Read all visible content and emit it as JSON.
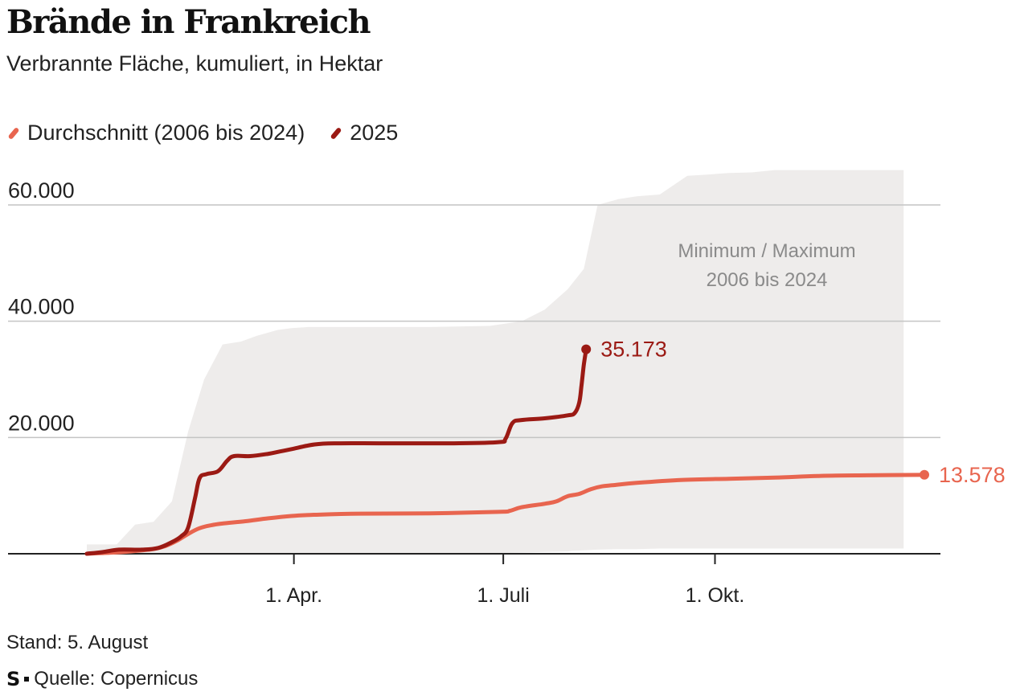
{
  "title": "Brände in Frankreich",
  "subtitle": "Verbrannte Fläche, kumuliert, in Hektar",
  "legend": {
    "average": "Durchschnitt (2006 bis 2024)",
    "current": "2025"
  },
  "colors": {
    "average": "#e8654f",
    "current": "#9b1a14",
    "range": "#eeeceb",
    "grid": "#c4c4c4",
    "axis": "#222222",
    "range_label": "#8a8a8a"
  },
  "footer": {
    "stand": "Stand: 5. August",
    "logo": "S",
    "source": "Quelle: Copernicus"
  },
  "chart_data": {
    "type": "area",
    "title": "Brände in Frankreich",
    "subtitle": "Verbrannte Fläche, kumuliert, in Hektar",
    "x_unit": "day of year",
    "xlim": [
      1,
      365
    ],
    "ylim": [
      0,
      60000
    ],
    "y_ticks": [
      20000,
      40000,
      60000
    ],
    "y_tick_labels": [
      "20.000",
      "40.000",
      "60.000"
    ],
    "x_ticks": [
      91,
      182,
      274
    ],
    "x_tick_labels": [
      "1. Apr.",
      "1. Juli",
      "1. Okt."
    ],
    "grid": true,
    "legend_position": "top-left",
    "range_label": [
      "Minimum / Maximum",
      "2006 bis 2024"
    ],
    "range": {
      "name": "Minimum / Maximum 2006 bis 2024",
      "x": [
        1,
        14,
        22,
        30,
        38,
        45,
        52,
        60,
        68,
        75,
        84,
        90,
        97,
        105,
        150,
        176,
        190,
        200,
        210,
        212,
        217,
        223,
        232,
        240,
        250,
        262,
        270,
        280,
        290,
        300,
        320,
        340,
        356
      ],
      "max": [
        1600,
        1600,
        5000,
        5500,
        9000,
        21000,
        30000,
        36000,
        36500,
        37500,
        38500,
        38800,
        39000,
        39000,
        39000,
        39200,
        40000,
        42000,
        45500,
        46500,
        49000,
        60000,
        61000,
        61500,
        61800,
        65000,
        65200,
        65500,
        65600,
        66000,
        66000,
        66000,
        66000
      ],
      "min": [
        0,
        0,
        0,
        0,
        0,
        0,
        0,
        0,
        0,
        0,
        0,
        0,
        0,
        0,
        0,
        100,
        200,
        300,
        400,
        500,
        600,
        700,
        800,
        800,
        900,
        900,
        900,
        900,
        900,
        900,
        900,
        900,
        900
      ]
    },
    "series": [
      {
        "name": "Durchschnitt (2006 bis 2024)",
        "x": [
          1,
          10,
          20,
          30,
          35,
          40,
          45,
          50,
          55,
          60,
          70,
          80,
          90,
          100,
          120,
          150,
          180,
          185,
          190,
          200,
          205,
          210,
          215,
          220,
          225,
          230,
          240,
          260,
          280,
          300,
          320,
          340,
          365
        ],
        "y": [
          0,
          150,
          400,
          800,
          1300,
          2200,
          3400,
          4400,
          4900,
          5200,
          5600,
          6100,
          6500,
          6700,
          6900,
          6950,
          7200,
          7400,
          8000,
          8600,
          9000,
          9900,
          10300,
          11100,
          11600,
          11800,
          12200,
          12700,
          12900,
          13100,
          13400,
          13500,
          13578
        ],
        "end_label": "13.578"
      },
      {
        "name": "2025",
        "x": [
          1,
          8,
          15,
          25,
          32,
          38,
          42,
          45,
          48,
          50,
          53,
          58,
          62,
          65,
          72,
          80,
          85,
          90,
          100,
          110,
          130,
          160,
          180,
          183,
          186,
          190,
          200,
          210,
          213,
          215,
          216,
          217,
          218
        ],
        "y": [
          0,
          300,
          700,
          700,
          1000,
          2000,
          3000,
          4500,
          9500,
          13000,
          13700,
          14200,
          16000,
          16800,
          16800,
          17200,
          17600,
          18000,
          18800,
          19000,
          19000,
          19000,
          19200,
          19800,
          22500,
          23000,
          23300,
          23800,
          24200,
          26000,
          29000,
          32500,
          35173
        ],
        "end_label": "35.173"
      }
    ]
  }
}
